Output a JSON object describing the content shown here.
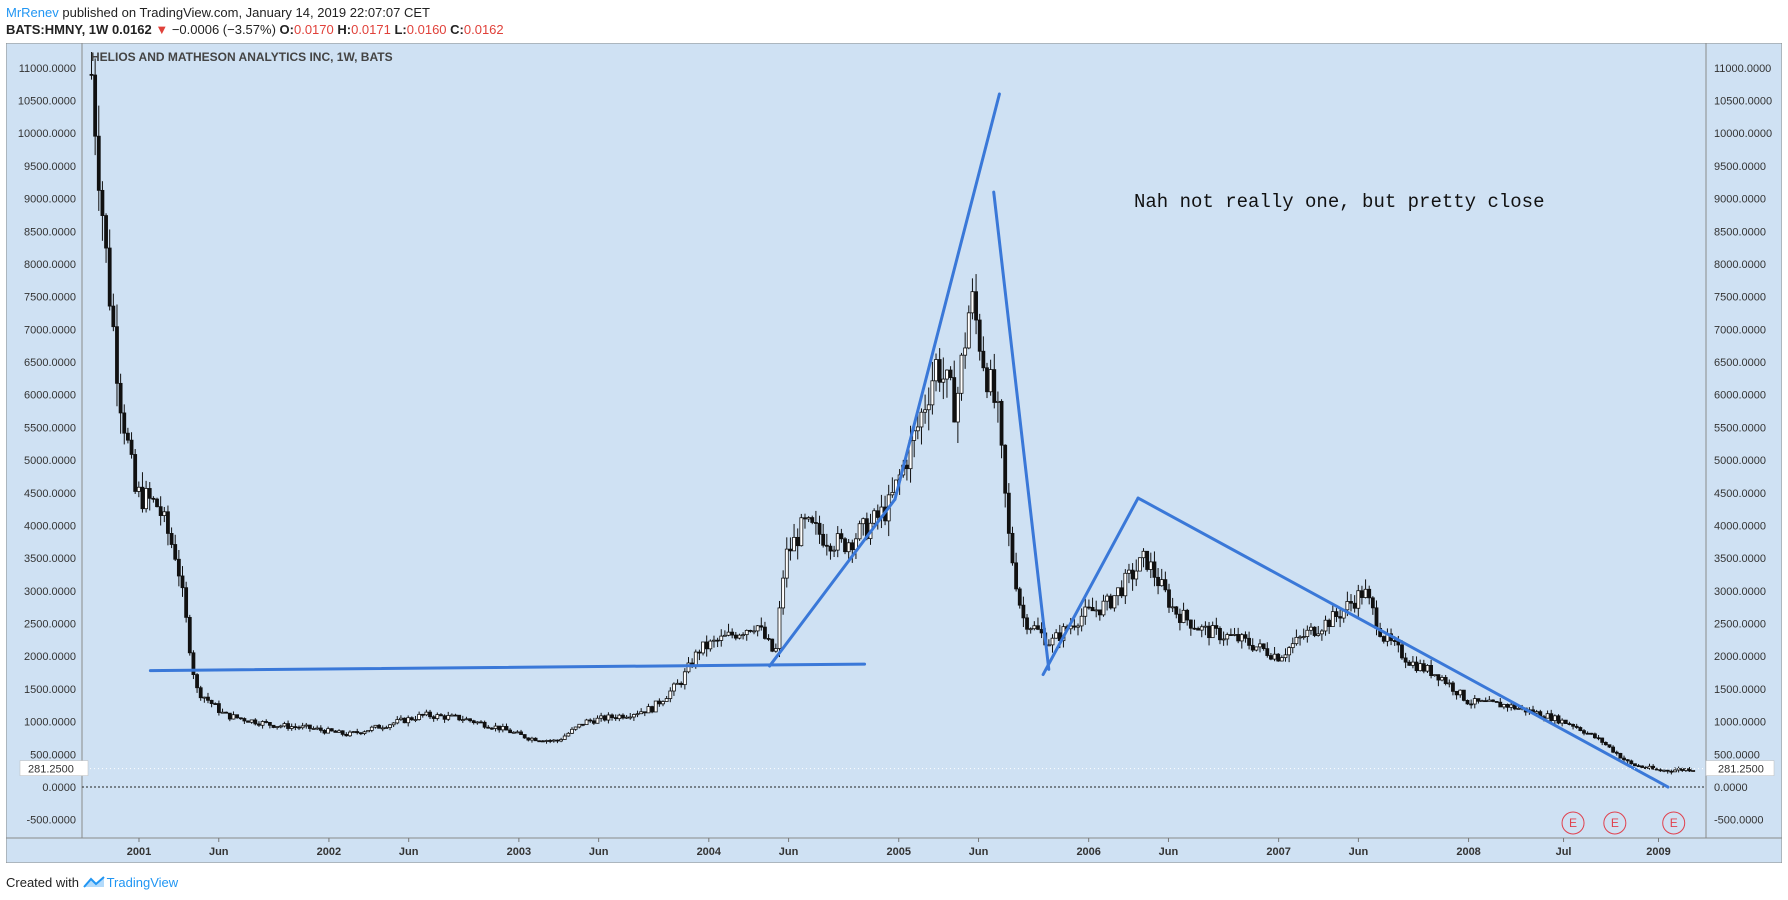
{
  "header": {
    "author": "MrRenev",
    "published_text": " published on TradingView.com, January 14, 2019 22:07:07 CET",
    "symbol": "BATS:HMNY, 1W",
    "last": "0.0162",
    "change": "−0.0006 (−3.57%)",
    "o_label": "O:",
    "o_value": "0.0170",
    "h_label": "H:",
    "h_value": "0.0171",
    "l_label": "L:",
    "l_value": "0.0160",
    "c_label": "C:",
    "c_value": "0.0162"
  },
  "footer": {
    "created_with": "Created with ",
    "brand": "TradingView"
  },
  "colors": {
    "background": "#cfe1f3",
    "candle": "#111111",
    "trendline": "#3a78d8",
    "earnings": "#e0414e",
    "accent": "#2196f3"
  },
  "chart_data": {
    "type": "candlestick",
    "title": "HELIOS AND MATHESON ANALYTICS INC, 1W, BATS",
    "annotation": "Nah not really one, but pretty close",
    "ylim": [
      -780,
      11380
    ],
    "y_ticks": [
      -500,
      0,
      500,
      1000,
      1500,
      2000,
      2500,
      3000,
      3500,
      4000,
      4500,
      5000,
      5500,
      6000,
      6500,
      7000,
      7500,
      8000,
      8500,
      9000,
      9500,
      10000,
      10500,
      11000
    ],
    "y_tick_labels": [
      "-500.0000",
      "0.0000",
      "500.0000",
      "1000.0000",
      "1500.0000",
      "2000.0000",
      "2500.0000",
      "3000.0000",
      "3500.0000",
      "4000.0000",
      "4500.0000",
      "5000.0000",
      "5500.0000",
      "6000.0000",
      "6500.0000",
      "7000.0000",
      "7500.0000",
      "8000.0000",
      "8500.0000",
      "9000.0000",
      "9500.0000",
      "10000.0000",
      "10500.0000",
      "11000.0000"
    ],
    "price_label": "281.2500",
    "price_line": 281.25,
    "zero_line": 0,
    "x_labels": [
      {
        "label": "2001",
        "t": 2001.0
      },
      {
        "label": "Jun",
        "t": 2001.42
      },
      {
        "label": "2002",
        "t": 2002.0
      },
      {
        "label": "Jun",
        "t": 2002.42
      },
      {
        "label": "2003",
        "t": 2003.0
      },
      {
        "label": "Jun",
        "t": 2003.42
      },
      {
        "label": "2004",
        "t": 2004.0
      },
      {
        "label": "Jun",
        "t": 2004.42
      },
      {
        "label": "2005",
        "t": 2005.0
      },
      {
        "label": "Jun",
        "t": 2005.42
      },
      {
        "label": "2006",
        "t": 2006.0
      },
      {
        "label": "Jun",
        "t": 2006.42
      },
      {
        "label": "2007",
        "t": 2007.0
      },
      {
        "label": "Jun",
        "t": 2007.42
      },
      {
        "label": "2008",
        "t": 2008.0
      },
      {
        "label": "Jul",
        "t": 2008.5
      },
      {
        "label": "2009",
        "t": 2009.0
      }
    ],
    "xlim": [
      2000.7,
      2009.25
    ],
    "path_points": [
      [
        2000.75,
        10900
      ],
      [
        2000.83,
        8000
      ],
      [
        2000.9,
        6000
      ],
      [
        2000.98,
        4500
      ],
      [
        2001.1,
        4300
      ],
      [
        2001.2,
        3500
      ],
      [
        2001.3,
        1500
      ],
      [
        2001.45,
        1100
      ],
      [
        2001.7,
        950
      ],
      [
        2001.9,
        900
      ],
      [
        2002.1,
        800
      ],
      [
        2002.3,
        950
      ],
      [
        2002.5,
        1100
      ],
      [
        2002.7,
        1050
      ],
      [
        2002.9,
        900
      ],
      [
        2003.05,
        750
      ],
      [
        2003.2,
        700
      ],
      [
        2003.35,
        1000
      ],
      [
        2003.55,
        1100
      ],
      [
        2003.7,
        1200
      ],
      [
        2003.85,
        1600
      ],
      [
        2003.95,
        2100
      ],
      [
        2004.1,
        2300
      ],
      [
        2004.25,
        2500
      ],
      [
        2004.35,
        2000
      ],
      [
        2004.4,
        3500
      ],
      [
        2004.5,
        4000
      ],
      [
        2004.7,
        3700
      ],
      [
        2004.85,
        4000
      ],
      [
        2004.95,
        4300
      ],
      [
        2005.1,
        5500
      ],
      [
        2005.2,
        6500
      ],
      [
        2005.3,
        5800
      ],
      [
        2005.38,
        7500
      ],
      [
        2005.45,
        6500
      ],
      [
        2005.52,
        5700
      ],
      [
        2005.58,
        3800
      ],
      [
        2005.65,
        2600
      ],
      [
        2005.8,
        2200
      ],
      [
        2005.95,
        2600
      ],
      [
        2006.1,
        2800
      ],
      [
        2006.3,
        3500
      ],
      [
        2006.45,
        2700
      ],
      [
        2006.6,
        2400
      ],
      [
        2006.8,
        2250
      ],
      [
        2007.0,
        2000
      ],
      [
        2007.15,
        2350
      ],
      [
        2007.3,
        2600
      ],
      [
        2007.45,
        3000
      ],
      [
        2007.55,
        2300
      ],
      [
        2007.7,
        1900
      ],
      [
        2007.85,
        1700
      ],
      [
        2008.0,
        1300
      ],
      [
        2008.2,
        1250
      ],
      [
        2008.4,
        1100
      ],
      [
        2008.55,
        950
      ],
      [
        2008.7,
        700
      ],
      [
        2008.85,
        350
      ],
      [
        2009.0,
        250
      ],
      [
        2009.2,
        280
      ]
    ],
    "trendlines": [
      {
        "from": [
          2001.06,
          1780
        ],
        "to": [
          2004.82,
          1880
        ]
      },
      {
        "from": [
          2004.32,
          1850
        ],
        "to": [
          2004.98,
          4400
        ]
      },
      {
        "from": [
          2004.98,
          4400
        ],
        "to": [
          2005.53,
          10600
        ]
      },
      {
        "from": [
          2005.5,
          9100
        ],
        "to": [
          2005.79,
          1800
        ]
      },
      {
        "from": [
          2005.76,
          1720
        ],
        "to": [
          2006.26,
          4420
        ]
      },
      {
        "from": [
          2006.26,
          4420
        ],
        "to": [
          2009.05,
          0
        ]
      }
    ],
    "earnings_events": [
      {
        "label": "E",
        "t": 2008.55
      },
      {
        "label": "E",
        "t": 2008.77
      },
      {
        "label": "E",
        "t": 2009.08
      }
    ]
  }
}
